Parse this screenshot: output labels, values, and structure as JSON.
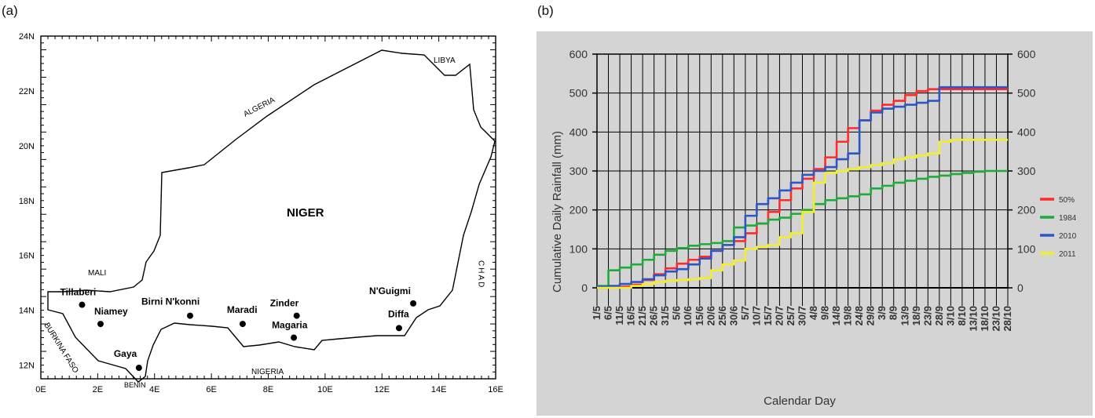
{
  "panel_a": {
    "label": "(a)",
    "x_ticks": [
      "0E",
      "2E",
      "4E",
      "6E",
      "8E",
      "10E",
      "12E",
      "14E",
      "16E"
    ],
    "y_ticks": [
      "24N",
      "22N",
      "20N",
      "18N",
      "16N",
      "14N",
      "12N"
    ],
    "country": "NIGER",
    "neighbors": {
      "libya": "LIBYA",
      "algeria": "ALGERIA",
      "mali": "MALI",
      "chad": "CHAD",
      "burkina_faso": "BURKINA FASO",
      "benin": "BENIN",
      "nigeria": "NIGERIA"
    },
    "stations": [
      {
        "name": "Tillaberi",
        "lon": 1.45,
        "lat": 14.2
      },
      {
        "name": "Niamey",
        "lon": 2.1,
        "lat": 13.5
      },
      {
        "name": "Gaya",
        "lon": 3.45,
        "lat": 11.9
      },
      {
        "name": "Birni N'konni",
        "lon": 5.25,
        "lat": 13.8
      },
      {
        "name": "Maradi",
        "lon": 7.1,
        "lat": 13.5
      },
      {
        "name": "Zinder",
        "lon": 9.0,
        "lat": 13.8
      },
      {
        "name": "Magaria",
        "lon": 8.9,
        "lat": 13.0
      },
      {
        "name": "N'Guigmi",
        "lon": 13.1,
        "lat": 14.25
      },
      {
        "name": "Diffa",
        "lon": 12.6,
        "lat": 13.35
      }
    ]
  },
  "panel_b": {
    "label": "(b)",
    "legend_title_none": "",
    "colors": {
      "bg": "#d4d4d4",
      "grid": "#000000",
      "s50": "#ff2a2a",
      "s1984": "#1faa3a",
      "s2010": "#2d55c4",
      "s2011": "#f2ef2a"
    }
  },
  "chart_data": {
    "type": "line",
    "xlabel": "Calendar Day",
    "ylabel": "Cumulative Daily Rainfall  (mm)",
    "ylim": [
      0,
      600
    ],
    "yticks": [
      "0",
      "100",
      "200",
      "300",
      "400",
      "500",
      "600"
    ],
    "categories": [
      "1/5",
      "6/5",
      "11/5",
      "16/5",
      "21/5",
      "26/5",
      "31/5",
      "5/6",
      "10/6",
      "15/6",
      "20/6",
      "25/6",
      "30/6",
      "5/7",
      "10/7",
      "15/7",
      "20/7",
      "25/7",
      "30/7",
      "4/8",
      "9/8",
      "14/8",
      "19/8",
      "24/8",
      "29/8",
      "3/9",
      "8/9",
      "13/9",
      "18/9",
      "23/9",
      "28/9",
      "3/10",
      "8/10",
      "13/10",
      "18/10",
      "23/10",
      "28/10"
    ],
    "x_tick_labels": [
      "1/5",
      "6/5",
      "11/5",
      "16/5",
      "21/5",
      "26/5",
      "31/5",
      "5/6",
      "10/6",
      "15/6",
      "20/6",
      "25/6",
      "30/6",
      "5/7",
      "10/7",
      "15/7",
      "20/7",
      "25/7",
      "30/7",
      "4/8",
      "9/8",
      "14/8",
      "19/8",
      "24/8",
      "29/8",
      "3/9",
      "8/9",
      "13/9",
      "18/9",
      "23/9",
      "28/9",
      "3/10",
      "8/10",
      "13/10",
      "18/10",
      "23/10",
      "28/10"
    ],
    "legend_position": "right",
    "grid": true,
    "series": [
      {
        "name": "50%",
        "color": "#ff2a2a",
        "values": [
          0,
          1,
          3,
          8,
          20,
          35,
          50,
          62,
          72,
          80,
          95,
          110,
          120,
          140,
          165,
          195,
          225,
          255,
          280,
          305,
          335,
          375,
          410,
          430,
          455,
          470,
          480,
          495,
          505,
          510,
          510,
          510,
          510,
          510,
          510,
          510,
          510
        ]
      },
      {
        "name": "1984",
        "color": "#1faa3a",
        "values": [
          5,
          45,
          52,
          60,
          72,
          85,
          95,
          102,
          108,
          112,
          115,
          120,
          155,
          160,
          165,
          175,
          180,
          190,
          200,
          215,
          225,
          230,
          235,
          240,
          255,
          262,
          270,
          275,
          280,
          285,
          288,
          292,
          295,
          298,
          300,
          300,
          300
        ]
      },
      {
        "name": "2010",
        "color": "#2d55c4",
        "values": [
          3,
          5,
          10,
          15,
          22,
          32,
          42,
          48,
          60,
          75,
          95,
          110,
          130,
          185,
          215,
          230,
          250,
          270,
          290,
          300,
          310,
          330,
          345,
          430,
          450,
          460,
          465,
          470,
          475,
          480,
          515,
          515,
          515,
          515,
          515,
          515,
          515
        ]
      },
      {
        "name": "2011",
        "color": "#f2ef2a",
        "values": [
          0,
          0,
          0,
          5,
          10,
          15,
          18,
          20,
          22,
          25,
          45,
          60,
          70,
          100,
          105,
          110,
          130,
          140,
          195,
          270,
          295,
          300,
          305,
          310,
          315,
          320,
          330,
          335,
          340,
          345,
          375,
          380,
          380,
          380,
          380,
          380,
          380
        ]
      }
    ]
  }
}
